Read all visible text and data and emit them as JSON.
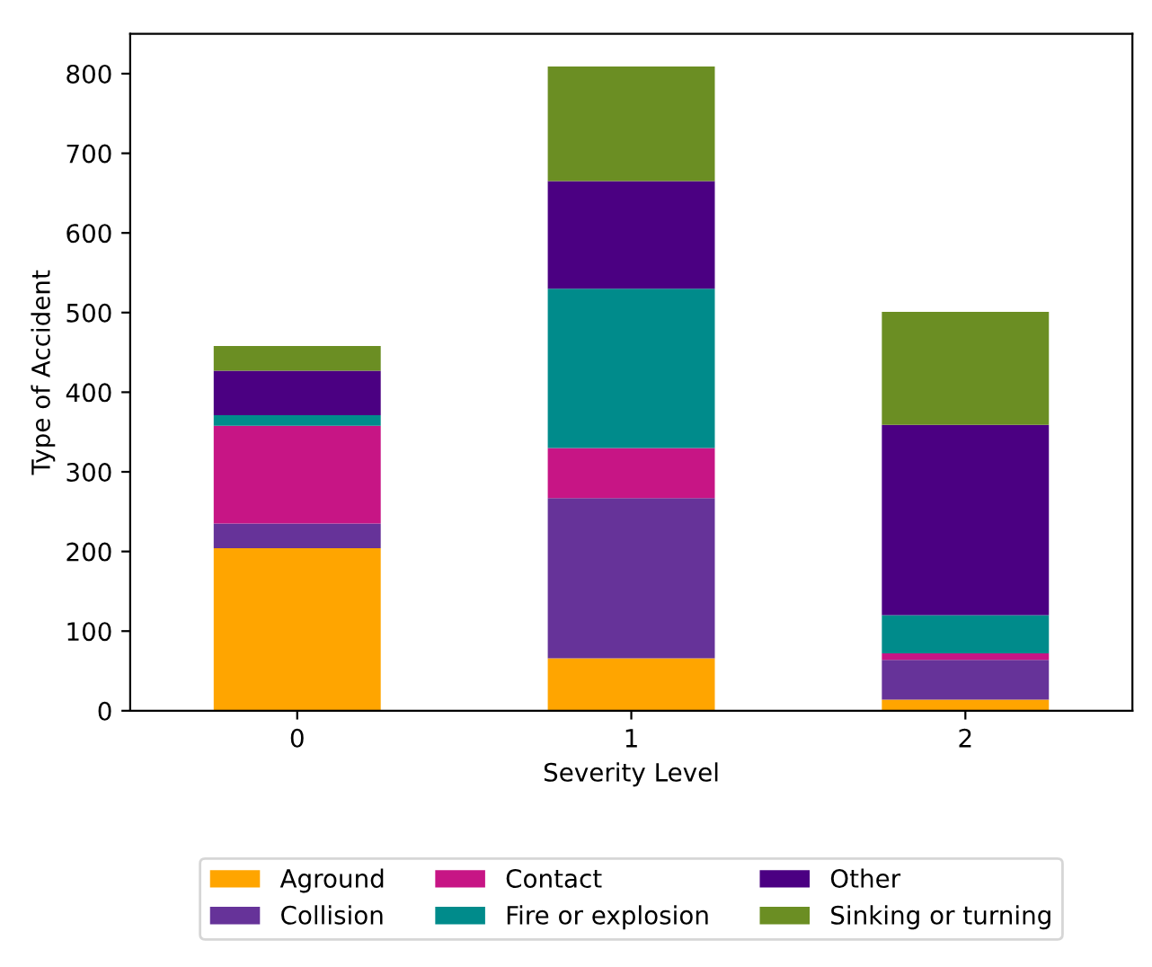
{
  "chart_data": {
    "type": "bar",
    "stacked": true,
    "xlabel": "Severity Level",
    "ylabel": "Type of Accident",
    "categories": [
      "0",
      "1",
      "2"
    ],
    "series": [
      {
        "name": "Aground",
        "color": "#ffa500",
        "values": [
          204,
          66,
          14
        ]
      },
      {
        "name": "Collision",
        "color": "#663399",
        "values": [
          31,
          201,
          50
        ]
      },
      {
        "name": "Contact",
        "color": "#c71585",
        "values": [
          123,
          63,
          8
        ]
      },
      {
        "name": "Fire or explosion",
        "color": "#008b8b",
        "values": [
          13,
          200,
          48
        ]
      },
      {
        "name": "Other",
        "color": "#4b0082",
        "values": [
          56,
          135,
          239
        ]
      },
      {
        "name": "Sinking or turning",
        "color": "#6b8e23",
        "values": [
          31,
          144,
          142
        ]
      }
    ],
    "ylim": [
      0,
      850
    ],
    "yticks": [
      0,
      100,
      200,
      300,
      400,
      500,
      600,
      700,
      800
    ],
    "grid": false,
    "legend": "bottom"
  }
}
